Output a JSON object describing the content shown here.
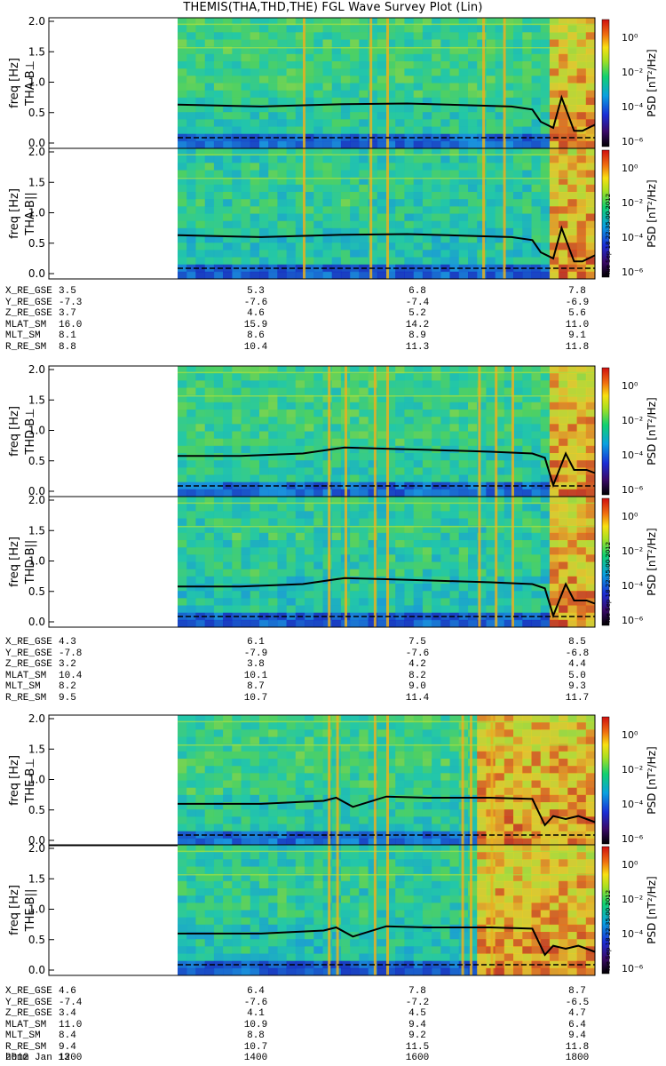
{
  "title": "THEMIS(THA,THD,THE) FGL Wave Survey Plot (Lin)",
  "colorbar": {
    "label": "PSD [nT²/Hz]",
    "ticks": [
      "10⁰",
      "10⁻²",
      "10⁻⁴",
      "10⁻⁶"
    ]
  },
  "stamp": "Tue Sep 18 22:35:00 2012",
  "chart_data": {
    "type": "heatmap",
    "x_range_hhmm": [
      "1100",
      "1800"
    ],
    "data_start_hhmm": "1200",
    "yticks": [
      "0.0",
      "0.5",
      "1.0",
      "1.5",
      "2.0"
    ],
    "ylim": [
      0,
      2.0
    ],
    "ylabel": "freq [Hz]",
    "panels": [
      {
        "probe_label": "THA B⊥",
        "probe": "THA"
      },
      {
        "probe_label": "THA B||",
        "probe": "THA"
      },
      {
        "probe_label": "THD B⊥",
        "probe": "THD"
      },
      {
        "probe_label": "THD B||",
        "probe": "THD"
      },
      {
        "probe_label": "THE B⊥",
        "probe": "THE"
      },
      {
        "probe_label": "THE B||",
        "probe": "THE"
      }
    ],
    "black_curve": {
      "THA": {
        "x": [
          0,
          0.2,
          0.4,
          0.55,
          0.7,
          0.8,
          0.85,
          0.87,
          0.9,
          0.92,
          0.95,
          0.97,
          1.0
        ],
        "y": [
          0.63,
          0.6,
          0.64,
          0.65,
          0.62,
          0.6,
          0.55,
          0.35,
          0.25,
          0.75,
          0.2,
          0.2,
          0.3
        ]
      },
      "THD": {
        "x": [
          0,
          0.15,
          0.3,
          0.4,
          0.5,
          0.6,
          0.75,
          0.85,
          0.88,
          0.9,
          0.93,
          0.95,
          0.98,
          1.0
        ],
        "y": [
          0.58,
          0.58,
          0.62,
          0.72,
          0.7,
          0.68,
          0.65,
          0.62,
          0.55,
          0.1,
          0.62,
          0.35,
          0.35,
          0.3
        ]
      },
      "THE": {
        "x": [
          0,
          0.2,
          0.35,
          0.38,
          0.42,
          0.5,
          0.6,
          0.75,
          0.85,
          0.88,
          0.9,
          0.93,
          0.96,
          1.0
        ],
        "y": [
          0.6,
          0.6,
          0.65,
          0.7,
          0.55,
          0.72,
          0.7,
          0.7,
          0.68,
          0.25,
          0.4,
          0.35,
          0.4,
          0.3
        ]
      }
    }
  },
  "ephemeris": [
    {
      "rows": [
        {
          "label": "X_RE_GSE",
          "values": [
            "3.5",
            "5.3",
            "6.8",
            "7.8"
          ]
        },
        {
          "label": "Y_RE_GSE",
          "values": [
            "-7.3",
            "-7.6",
            "-7.4",
            "-6.9"
          ]
        },
        {
          "label": "Z_RE_GSE",
          "values": [
            "3.7",
            "4.6",
            "5.2",
            "5.6"
          ]
        },
        {
          "label": "MLAT_SM",
          "values": [
            "16.0",
            "15.9",
            "14.2",
            "11.0"
          ]
        },
        {
          "label": "MLT_SM",
          "values": [
            "8.1",
            "8.6",
            "8.9",
            "9.1"
          ]
        },
        {
          "label": "R_RE_SM",
          "values": [
            "8.8",
            "10.4",
            "11.3",
            "11.8"
          ]
        }
      ]
    },
    {
      "rows": [
        {
          "label": "X_RE_GSE",
          "values": [
            "4.3",
            "6.1",
            "7.5",
            "8.5"
          ]
        },
        {
          "label": "Y_RE_GSE",
          "values": [
            "-7.8",
            "-7.9",
            "-7.6",
            "-6.8"
          ]
        },
        {
          "label": "Z_RE_GSE",
          "values": [
            "3.2",
            "3.8",
            "4.2",
            "4.4"
          ]
        },
        {
          "label": "MLAT_SM",
          "values": [
            "10.4",
            "10.1",
            "8.2",
            "5.0"
          ]
        },
        {
          "label": "MLT_SM",
          "values": [
            "8.2",
            "8.7",
            "9.0",
            "9.3"
          ]
        },
        {
          "label": "R_RE_SM",
          "values": [
            "9.5",
            "10.7",
            "11.4",
            "11.7"
          ]
        }
      ]
    },
    {
      "rows": [
        {
          "label": "X_RE_GSE",
          "values": [
            "4.6",
            "6.4",
            "7.8",
            "8.7"
          ]
        },
        {
          "label": "Y_RE_GSE",
          "values": [
            "-7.4",
            "-7.6",
            "-7.2",
            "-6.5"
          ]
        },
        {
          "label": "Z_RE_GSE",
          "values": [
            "3.4",
            "4.1",
            "4.5",
            "4.7"
          ]
        },
        {
          "label": "MLAT_SM",
          "values": [
            "11.0",
            "10.9",
            "9.4",
            "6.4"
          ]
        },
        {
          "label": "MLT_SM",
          "values": [
            "8.4",
            "8.8",
            "9.2",
            "9.4"
          ]
        },
        {
          "label": "R_RE_SM",
          "values": [
            "9.4",
            "10.7",
            "11.5",
            "11.8"
          ]
        },
        {
          "label": "hhmm",
          "values": [
            "1200",
            "1400",
            "1600",
            "1800"
          ]
        }
      ]
    }
  ],
  "date": "2012 Jan 13"
}
